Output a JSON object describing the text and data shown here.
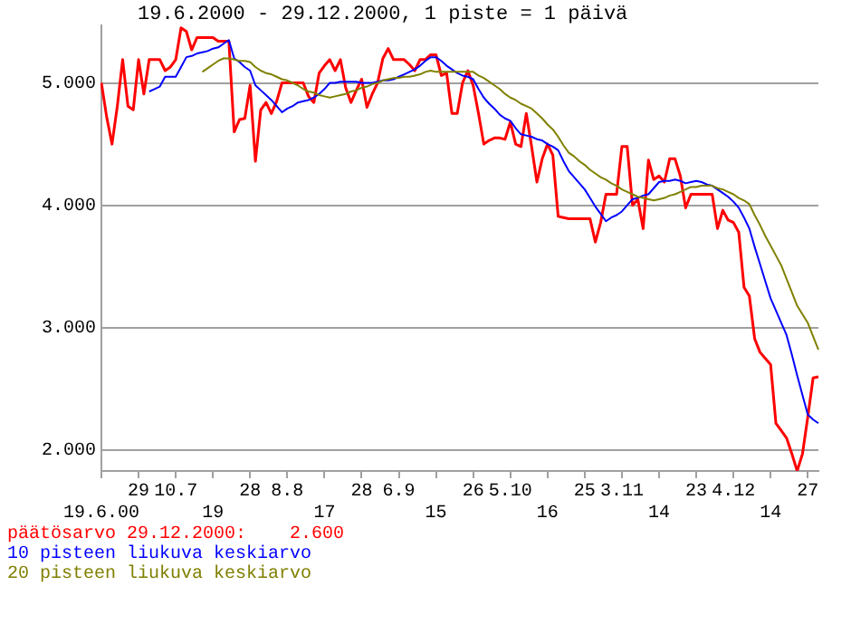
{
  "chart_data": {
    "type": "line",
    "title": "19.6.2000 - 29.12.2000, 1 piste = 1 päivä",
    "categories": [
      "19.6.00",
      null,
      null,
      null,
      null,
      null,
      null,
      "29",
      null,
      null,
      null,
      null,
      null,
      null,
      "10.7",
      null,
      null,
      null,
      null,
      null,
      null,
      "19",
      null,
      null,
      null,
      null,
      null,
      null,
      "28",
      null,
      null,
      null,
      null,
      null,
      null,
      "8.8",
      null,
      null,
      null,
      null,
      null,
      null,
      "17",
      null,
      null,
      null,
      null,
      null,
      null,
      "28",
      null,
      null,
      null,
      null,
      null,
      null,
      "6.9",
      null,
      null,
      null,
      null,
      null,
      null,
      "15",
      null,
      null,
      null,
      null,
      null,
      null,
      "26",
      null,
      null,
      null,
      null,
      null,
      null,
      "5.10",
      null,
      null,
      null,
      null,
      null,
      null,
      "16",
      null,
      null,
      null,
      null,
      null,
      null,
      "25",
      null,
      null,
      null,
      null,
      null,
      null,
      "3.11",
      null,
      null,
      null,
      null,
      null,
      null,
      "14",
      null,
      null,
      null,
      null,
      null,
      null,
      "23",
      null,
      null,
      null,
      null,
      null,
      null,
      "4.12",
      null,
      null,
      null,
      null,
      null,
      null,
      "14",
      null,
      null,
      null,
      null,
      null,
      null,
      "27",
      null,
      null
    ],
    "ylim": [
      1.83,
      5.47
    ],
    "yticks": [
      {
        "value": 2,
        "label": "2.000"
      },
      {
        "value": 3,
        "label": "3.000"
      },
      {
        "value": 4,
        "label": "4.000"
      },
      {
        "value": 5,
        "label": "5.000"
      }
    ],
    "grid": "y",
    "legend": "bottom",
    "marker": "none",
    "line_style": "solid",
    "series": [
      {
        "name": "päätösarvo 29.12.2000:    2.600",
        "color": "#ff0000",
        "values": [
          5.0,
          4.72,
          4.5,
          4.81,
          5.19,
          4.81,
          4.78,
          5.19,
          4.91,
          5.19,
          5.19,
          5.19,
          5.1,
          5.13,
          5.19,
          5.45,
          5.42,
          5.27,
          5.37,
          5.37,
          5.37,
          5.37,
          5.34,
          5.34,
          5.34,
          4.6,
          4.7,
          4.71,
          4.98,
          4.36,
          4.78,
          4.84,
          4.75,
          4.85,
          5.0,
          5.0,
          5.0,
          5.0,
          5.0,
          4.89,
          4.84,
          5.08,
          5.14,
          5.19,
          5.1,
          5.19,
          4.96,
          4.84,
          4.94,
          5.03,
          4.8,
          4.91,
          5.0,
          5.2,
          5.28,
          5.19,
          5.19,
          5.19,
          5.15,
          5.1,
          5.19,
          5.19,
          5.23,
          5.23,
          5.06,
          5.08,
          4.75,
          4.75,
          5.0,
          5.1,
          4.98,
          4.75,
          4.5,
          4.53,
          4.55,
          4.55,
          4.54,
          4.68,
          4.5,
          4.48,
          4.75,
          4.48,
          4.19,
          4.38,
          4.5,
          4.41,
          3.91,
          3.9,
          3.89,
          3.89,
          3.89,
          3.89,
          3.89,
          3.7,
          3.86,
          4.09,
          4.09,
          4.09,
          4.48,
          4.48,
          4.0,
          4.05,
          3.81,
          4.37,
          4.21,
          4.24,
          4.19,
          4.38,
          4.38,
          4.24,
          3.98,
          4.09,
          4.09,
          4.09,
          4.09,
          4.09,
          3.81,
          3.96,
          3.88,
          3.86,
          3.78,
          3.33,
          3.26,
          2.91,
          2.8,
          2.75,
          2.7,
          2.22,
          2.16,
          2.1,
          1.97,
          1.83,
          1.97,
          2.27,
          2.59,
          2.6
        ]
      },
      {
        "name": "10 pisteen liukuva keskiarvo",
        "color": "#0000ff",
        "values": [
          null,
          null,
          null,
          null,
          null,
          null,
          null,
          null,
          null,
          4.93,
          4.95,
          4.97,
          5.05,
          5.05,
          5.05,
          5.13,
          5.21,
          5.22,
          5.24,
          5.25,
          5.26,
          5.28,
          5.29,
          5.32,
          5.35,
          5.2,
          5.17,
          5.13,
          5.1,
          4.98,
          4.94,
          4.9,
          4.86,
          4.81,
          4.76,
          4.79,
          4.81,
          4.84,
          4.85,
          4.86,
          4.88,
          4.91,
          4.95,
          5.0,
          5.0,
          5.01,
          5.01,
          5.01,
          5.01,
          5.0,
          5.0,
          5.0,
          5.01,
          5.02,
          5.02,
          5.03,
          5.05,
          5.07,
          5.09,
          5.11,
          5.14,
          5.18,
          5.21,
          5.21,
          5.18,
          5.14,
          5.11,
          5.08,
          5.06,
          5.05,
          5.03,
          4.95,
          4.88,
          4.83,
          4.79,
          4.74,
          4.71,
          4.69,
          4.63,
          4.58,
          4.57,
          4.56,
          4.54,
          4.53,
          4.5,
          4.48,
          4.45,
          4.36,
          4.28,
          4.23,
          4.18,
          4.13,
          4.06,
          3.99,
          3.93,
          3.87,
          3.9,
          3.92,
          3.95,
          4.0,
          4.05,
          4.06,
          4.08,
          4.09,
          4.14,
          4.19,
          4.2,
          4.2,
          4.21,
          4.2,
          4.18,
          4.19,
          4.2,
          4.19,
          4.17,
          4.16,
          4.13,
          4.1,
          4.07,
          4.03,
          3.98,
          3.9,
          3.81,
          3.66,
          3.52,
          3.38,
          3.24,
          3.14,
          3.04,
          2.94,
          2.78,
          2.61,
          2.45,
          2.29,
          2.25,
          2.22
        ]
      },
      {
        "name": "20 pisteen liukuva keskiarvo",
        "color": "#808000",
        "values": [
          null,
          null,
          null,
          null,
          null,
          null,
          null,
          null,
          null,
          null,
          null,
          null,
          null,
          null,
          null,
          null,
          null,
          null,
          null,
          5.09,
          5.12,
          5.15,
          5.18,
          5.2,
          5.2,
          5.19,
          5.18,
          5.18,
          5.17,
          5.13,
          5.1,
          5.08,
          5.07,
          5.05,
          5.03,
          5.02,
          5.0,
          4.98,
          4.95,
          4.93,
          4.92,
          4.9,
          4.89,
          4.88,
          4.89,
          4.9,
          4.91,
          4.93,
          4.94,
          4.96,
          4.97,
          4.99,
          5.0,
          5.02,
          5.03,
          5.04,
          5.04,
          5.05,
          5.05,
          5.06,
          5.07,
          5.09,
          5.1,
          5.09,
          5.09,
          5.09,
          5.09,
          5.09,
          5.09,
          5.09,
          5.09,
          5.06,
          5.04,
          5.01,
          4.98,
          4.95,
          4.91,
          4.88,
          4.86,
          4.83,
          4.81,
          4.79,
          4.75,
          4.71,
          4.66,
          4.62,
          4.56,
          4.49,
          4.43,
          4.4,
          4.36,
          4.33,
          4.29,
          4.26,
          4.23,
          4.21,
          4.18,
          4.16,
          4.13,
          4.11,
          4.09,
          4.07,
          4.06,
          4.05,
          4.04,
          4.05,
          4.06,
          4.08,
          4.09,
          4.11,
          4.13,
          4.15,
          4.15,
          4.16,
          4.16,
          4.16,
          4.14,
          4.13,
          4.11,
          4.09,
          4.06,
          4.04,
          4.01,
          3.92,
          3.84,
          3.75,
          3.67,
          3.59,
          3.51,
          3.4,
          3.29,
          3.18,
          3.11,
          3.04,
          2.93,
          2.82
        ]
      }
    ]
  }
}
